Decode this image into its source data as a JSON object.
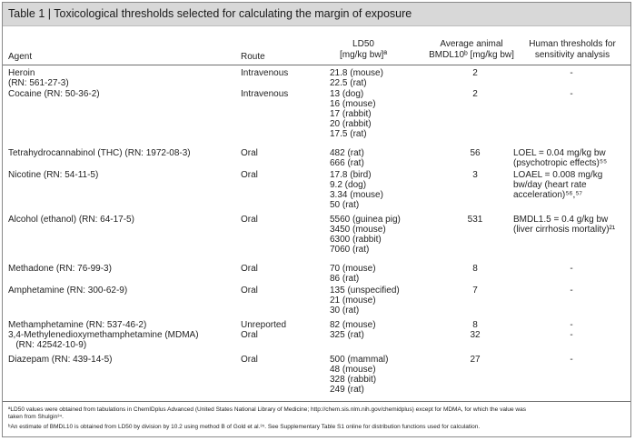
{
  "title": "Table 1 | Toxicological thresholds selected for calculating the margin of exposure",
  "headers": {
    "agent": "Agent",
    "route": "Route",
    "ld50_line1": "LD50",
    "ld50_line2": "[mg/kg bw]ª",
    "bmdl_line1": "Average animal",
    "bmdl_line2": "BMDL10ᵇ [mg/kg bw]",
    "human_line1": "Human thresholds for",
    "human_line2": "sensitivity analysis"
  },
  "rows": [
    {
      "agent": [
        "Heroin",
        "(RN: 561-27-3)"
      ],
      "route": "Intravenous",
      "ld50": [
        "21.8 (mouse)",
        "22.5 (rat)"
      ],
      "bmdl": "2",
      "human": [
        "-"
      ]
    },
    {
      "agent": [
        "Cocaine (RN: 50-36-2)"
      ],
      "route": "Intravenous",
      "ld50": [
        "13 (dog)",
        "16 (mouse)",
        "17 (rabbit)",
        "20 (rabbit)",
        "17.5 (rat)"
      ],
      "bmdl": "2",
      "human": [
        "-"
      ]
    },
    {
      "agent": [
        "Tetrahydrocannabinol (THC) (RN: 1972-08-3)"
      ],
      "route": "Oral",
      "ld50": [
        "482 (rat)",
        "666 (rat)"
      ],
      "bmdl": "56",
      "human": [
        "LOEL = 0.04 mg/kg bw",
        "(psychotropic effects)⁵⁵"
      ]
    },
    {
      "agent": [
        "Nicotine (RN: 54-11-5)"
      ],
      "route": "Oral",
      "ld50": [
        "17.8 (bird)",
        "9.2 (dog)",
        "3.34 (mouse)",
        "50 (rat)"
      ],
      "bmdl": "3",
      "human": [
        "LOAEL = 0.008 mg/kg",
        "bw/day (heart rate",
        "acceleration)⁵⁶,⁵⁷"
      ]
    },
    {
      "agent": [
        "Alcohol (ethanol) (RN: 64-17-5)"
      ],
      "route": "Oral",
      "ld50": [
        "5560 (guinea pig)",
        "3450 (mouse)",
        "6300 (rabbit)",
        "7060 (rat)"
      ],
      "bmdl": "531",
      "human": [
        "BMDL1.5 = 0.4 g/kg bw",
        "(liver cirrhosis mortality)²¹"
      ]
    },
    {
      "agent": [
        "Methadone (RN: 76-99-3)"
      ],
      "route": "Oral",
      "ld50": [
        "70 (mouse)",
        "86 (rat)"
      ],
      "bmdl": "8",
      "human": [
        "-"
      ]
    },
    {
      "agent": [
        "Amphetamine (RN: 300-62-9)"
      ],
      "route": "Oral",
      "ld50": [
        "135 (unspecified)",
        "21 (mouse)",
        "30 (rat)"
      ],
      "bmdl": "7",
      "human": [
        "-"
      ]
    },
    {
      "agent": [
        "Methamphetamine (RN: 537-46-2)"
      ],
      "route": "Unreported",
      "ld50": [
        "82 (mouse)"
      ],
      "bmdl": "8",
      "human": [
        "-"
      ]
    },
    {
      "agent": [
        "3,4-Methylenedioxymethamphetamine (MDMA)",
        "   (RN: 42542-10-9)"
      ],
      "route": "Oral",
      "ld50": [
        "325 (rat)"
      ],
      "bmdl": "32",
      "human": [
        "-"
      ]
    },
    {
      "agent": [
        "Diazepam (RN: 439-14-5)"
      ],
      "route": "Oral",
      "ld50": [
        "500 (mammal)",
        "48 (mouse)",
        "328 (rabbit)",
        "249 (rat)"
      ],
      "bmdl": "27",
      "human": [
        "-"
      ]
    }
  ],
  "footnotes": [
    "ªLD50 values were obtained from tabulations in ChemIDplus Advanced (United States National Library of Medicine; http://chem.sis.nlm.nih.gov/chemidplus) except for MDMA, for which the value was",
    "taken from Shulgin³⁴.",
    "ᵇAn estimate of BMDL10 is obtained from LD50 by division by 10.2 using method B of Gold et al.³⁵. See Supplementary Table S1 online for distribution functions used for calculation."
  ]
}
